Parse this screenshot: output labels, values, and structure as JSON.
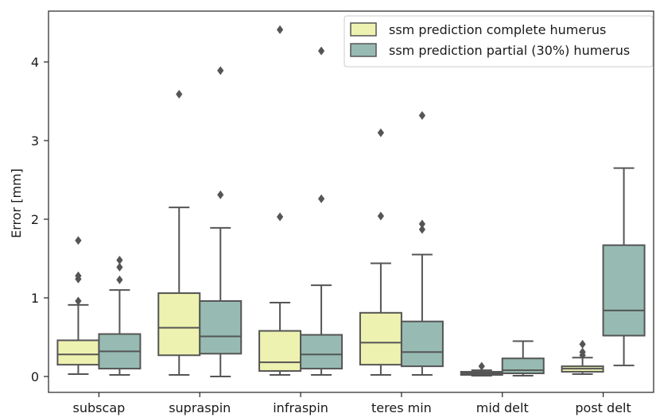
{
  "chart_data": {
    "type": "box",
    "title": "",
    "xlabel": "",
    "ylabel": "Error [mm]",
    "ylim": [
      -0.1,
      4.6
    ],
    "yticks": [
      0,
      1,
      2,
      3,
      4
    ],
    "categories": [
      "subscap",
      "supraspin",
      "infraspin",
      "teres min",
      "mid delt",
      "post delt"
    ],
    "legend": {
      "position": "top-right"
    },
    "series": [
      {
        "name": "ssm prediction complete humerus",
        "color": "#eef2b0",
        "boxes": [
          {
            "whislo": 0.03,
            "q1": 0.15,
            "med": 0.28,
            "q3": 0.46,
            "whishi": 0.91,
            "fliers": [
              0.96,
              1.24,
              1.28,
              1.73
            ]
          },
          {
            "whislo": 0.02,
            "q1": 0.27,
            "med": 0.62,
            "q3": 1.06,
            "whishi": 2.15,
            "fliers": [
              3.59
            ]
          },
          {
            "whislo": 0.02,
            "q1": 0.07,
            "med": 0.18,
            "q3": 0.58,
            "whishi": 0.94,
            "fliers": [
              2.03,
              4.41
            ]
          },
          {
            "whislo": 0.02,
            "q1": 0.15,
            "med": 0.43,
            "q3": 0.81,
            "whishi": 1.44,
            "fliers": [
              2.04,
              3.1
            ]
          },
          {
            "whislo": 0.01,
            "q1": 0.02,
            "med": 0.04,
            "q3": 0.06,
            "whishi": 0.08,
            "fliers": [
              0.13
            ]
          },
          {
            "whislo": 0.03,
            "q1": 0.06,
            "med": 0.1,
            "q3": 0.13,
            "whishi": 0.24,
            "fliers": [
              0.27,
              0.31,
              0.41
            ]
          }
        ]
      },
      {
        "name": "ssm prediction partial (30%) humerus",
        "color": "#97bbb2",
        "boxes": [
          {
            "whislo": 0.02,
            "q1": 0.1,
            "med": 0.32,
            "q3": 0.54,
            "whishi": 1.1,
            "fliers": [
              1.23,
              1.39,
              1.48
            ]
          },
          {
            "whislo": 0.0,
            "q1": 0.29,
            "med": 0.51,
            "q3": 0.96,
            "whishi": 1.89,
            "fliers": [
              2.31,
              3.89
            ]
          },
          {
            "whislo": 0.02,
            "q1": 0.1,
            "med": 0.28,
            "q3": 0.53,
            "whishi": 1.16,
            "fliers": [
              2.26,
              4.14
            ]
          },
          {
            "whislo": 0.02,
            "q1": 0.13,
            "med": 0.31,
            "q3": 0.7,
            "whishi": 1.55,
            "fliers": [
              1.87,
              1.94,
              3.32
            ]
          },
          {
            "whislo": 0.01,
            "q1": 0.04,
            "med": 0.08,
            "q3": 0.23,
            "whishi": 0.45,
            "fliers": []
          },
          {
            "whislo": 0.14,
            "q1": 0.52,
            "med": 0.84,
            "q3": 1.67,
            "whishi": 2.65,
            "fliers": []
          }
        ]
      }
    ],
    "colors": {
      "line": "#555555",
      "axis": "#222222"
    }
  }
}
